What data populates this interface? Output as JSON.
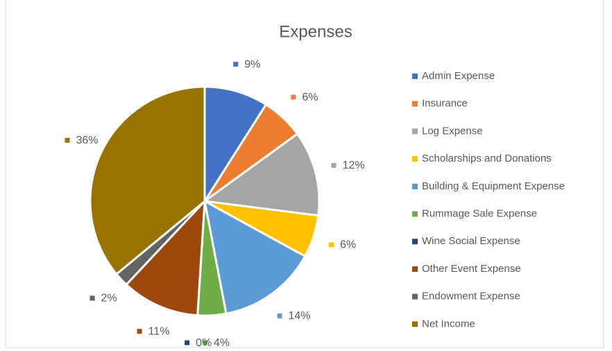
{
  "chart_data": {
    "type": "pie",
    "title": "Expenses",
    "categories": [
      "Admin Expense",
      "Insurance",
      "Log Expense",
      "Scholarships and Donations",
      "Building & Equipment Expense",
      "Rummage Sale Expense",
      "Wine Social Expense",
      "Other Event Expense",
      "Endowment Expense",
      "Net Income"
    ],
    "values": [
      9,
      6,
      12,
      6,
      14,
      4,
      0,
      11,
      2,
      36
    ],
    "value_labels": [
      "9%",
      "6%",
      "12%",
      "6%",
      "14%",
      "4%",
      "0%",
      "11%",
      "2%",
      "36%"
    ],
    "colors": [
      "#4472c4",
      "#ed7d31",
      "#a5a5a5",
      "#ffc000",
      "#5b9bd5",
      "#70ad47",
      "#264478",
      "#9e480e",
      "#636363",
      "#997300"
    ],
    "legend": "right"
  }
}
